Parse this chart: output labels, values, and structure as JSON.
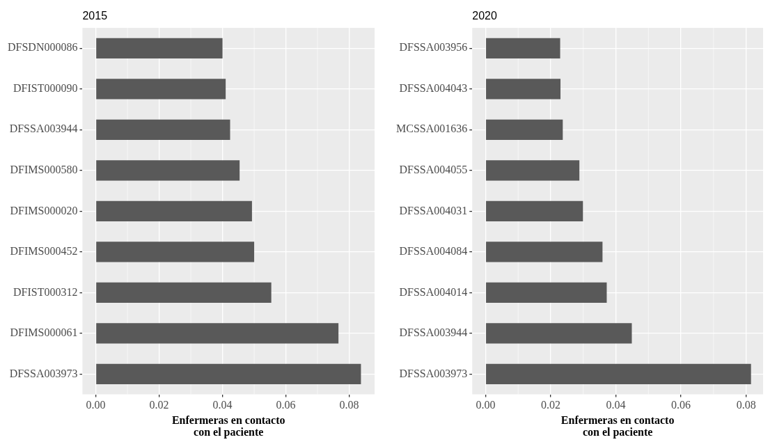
{
  "chart_data": [
    {
      "type": "bar",
      "orientation": "horizontal",
      "title": "2015",
      "xlabel": "Enfermeras en contacto con el paciente",
      "categories": [
        "DFSDN000086",
        "DFIST000090",
        "DFSSA003944",
        "DFIMS000580",
        "DFIMS000020",
        "DFIMS000452",
        "DFIST000312",
        "DFIMS000061",
        "DFSSA003973"
      ],
      "values": [
        0.04,
        0.041,
        0.0424,
        0.0454,
        0.0493,
        0.05,
        0.0554,
        0.0766,
        0.0837
      ],
      "color": "#595959",
      "xlim": [
        -0.0042,
        0.088
      ],
      "xticks": [
        {
          "value": 0,
          "label": "0.00"
        },
        {
          "value": 0.02,
          "label": "0.02"
        },
        {
          "value": 0.04,
          "label": "0.04"
        },
        {
          "value": 0.06,
          "label": "0.06"
        },
        {
          "value": 0.08,
          "label": "0.08"
        }
      ],
      "grid": true
    },
    {
      "type": "bar",
      "orientation": "horizontal",
      "title": "2020",
      "xlabel": "Enfermeras en contacto con el paciente",
      "categories": [
        "DFSSA003956",
        "DFSSA004043",
        "MCSSA001636",
        "DFSSA004055",
        "DFSSA004031",
        "DFSSA004084",
        "DFSSA004014",
        "DFSSA003944",
        "DFSSA003973"
      ],
      "values": [
        0.0229,
        0.023,
        0.0237,
        0.0288,
        0.0299,
        0.0359,
        0.0372,
        0.0449,
        0.0815
      ],
      "color": "#595959",
      "xlim": [
        -0.0041,
        0.0852
      ],
      "xticks": [
        {
          "value": 0,
          "label": "0.00"
        },
        {
          "value": 0.02,
          "label": "0.02"
        },
        {
          "value": 0.04,
          "label": "0.04"
        },
        {
          "value": 0.06,
          "label": "0.06"
        },
        {
          "value": 0.08,
          "label": "0.08"
        }
      ],
      "grid": true
    }
  ]
}
